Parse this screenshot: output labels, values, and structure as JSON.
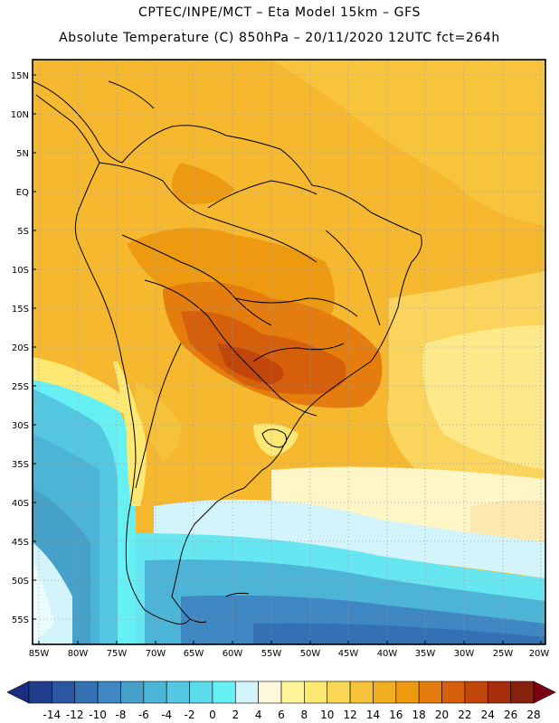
{
  "header": {
    "line1": "CPTEC/INPE/MCT –  Eta Model 15km – GFS",
    "line2": "Absolute Temperature (C) 850hPa – 20/11/2020 12UTC fct=264h"
  },
  "map": {
    "lat_labels": [
      "15N",
      "10N",
      "5N",
      "EQ",
      "5S",
      "10S",
      "15S",
      "20S",
      "25S",
      "30S",
      "35S",
      "40S",
      "45S",
      "50S",
      "55S"
    ],
    "lon_labels": [
      "85W",
      "80W",
      "75W",
      "70W",
      "65W",
      "60W",
      "55W",
      "50W",
      "45W",
      "40W",
      "35W",
      "30W",
      "25W",
      "20W"
    ],
    "variable": "Absolute Temperature",
    "unit": "C",
    "level": "850hPa"
  },
  "colorbar": {
    "labels": [
      "-14",
      "-12",
      "-10",
      "-8",
      "-6",
      "-4",
      "-2",
      "0",
      "2",
      "4",
      "6",
      "8",
      "10",
      "12",
      "14",
      "16",
      "18",
      "20",
      "22",
      "24",
      "26",
      "28"
    ],
    "colors": [
      "#203f8a",
      "#2b56a3",
      "#3470b4",
      "#3e87c2",
      "#45a0ca",
      "#4cb4d6",
      "#54c8e2",
      "#5cdcea",
      "#66f0f4",
      "#d2f4fa",
      "#fff8dc",
      "#fff49a",
      "#fce873",
      "#f9d654",
      "#f5c23a",
      "#f2ae1e",
      "#ee9a10",
      "#e57d0e",
      "#d65f0b",
      "#c2460a",
      "#a62e0b",
      "#86210c"
    ],
    "low_arrow_color": "#1a2e80",
    "high_arrow_color": "#7a0012"
  }
}
